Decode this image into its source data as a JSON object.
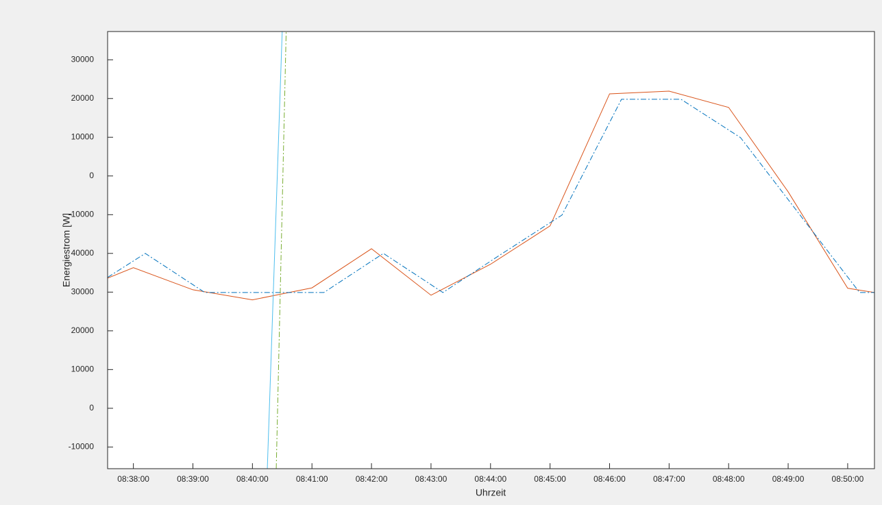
{
  "chart_data": {
    "type": "line",
    "y_label": "Energiestrom [W]",
    "x_label": "Uhrzeit",
    "xlim": [
      "08:37:34",
      "08:50:27"
    ],
    "xticks": [
      "08:38:00",
      "08:39:00",
      "08:40:00",
      "08:41:00",
      "08:42:00",
      "08:43:00",
      "08:44:00",
      "08:45:00",
      "08:46:00",
      "08:47:00",
      "08:48:00",
      "08:49:00",
      "08:50:00"
    ],
    "ylim": [
      -15600,
      97300
    ],
    "yticks": [
      -10000,
      0,
      10000,
      20000,
      30000,
      40000,
      {
        "value": 50000,
        "label": "-10000"
      },
      {
        "value": 60000,
        "label": "0"
      },
      {
        "value": 70000,
        "label": "10000"
      },
      {
        "value": 80000,
        "label": "20000"
      },
      {
        "value": 90000,
        "label": "30000"
      }
    ],
    "series": [
      {
        "color": "#d95319",
        "dash": "solid",
        "x": [
          "08:37:34",
          "08:38:00",
          "08:39:00",
          "08:40:00",
          "08:41:00",
          "08:42:00",
          "08:43:00",
          "08:44:00",
          "08:45:00",
          "08:46:00",
          "08:47:00",
          "08:48:00",
          "08:49:00",
          "08:50:00",
          "08:50:27"
        ],
        "values": [
          33600,
          36300,
          30600,
          28000,
          31100,
          41200,
          29200,
          37200,
          47100,
          81200,
          81900,
          77700,
          55900,
          31000,
          29900
        ]
      },
      {
        "color": "#0072bd",
        "dash": "dashdot",
        "x": [
          "08:37:34",
          "08:38:12",
          "08:39:12",
          "08:40:12",
          "08:41:12",
          "08:42:12",
          "08:43:12",
          "08:44:12",
          "08:45:12",
          "08:46:12",
          "08:47:12",
          "08:48:12",
          "08:49:12",
          "08:50:12",
          "08:50:27"
        ],
        "values": [
          33800,
          40000,
          29900,
          29900,
          29900,
          40000,
          29900,
          40000,
          49900,
          79800,
          79800,
          69900,
          49900,
          29900,
          29900
        ]
      },
      {
        "color": "#4dbeee",
        "dash": "solid",
        "x": [
          "08:40:15",
          "08:40:30"
        ],
        "values": [
          -15600,
          97300
        ]
      },
      {
        "color": "#77ac30",
        "dash": "dashdot",
        "x": [
          "08:40:24",
          "08:40:34"
        ],
        "values": [
          -15600,
          97300
        ]
      }
    ]
  }
}
